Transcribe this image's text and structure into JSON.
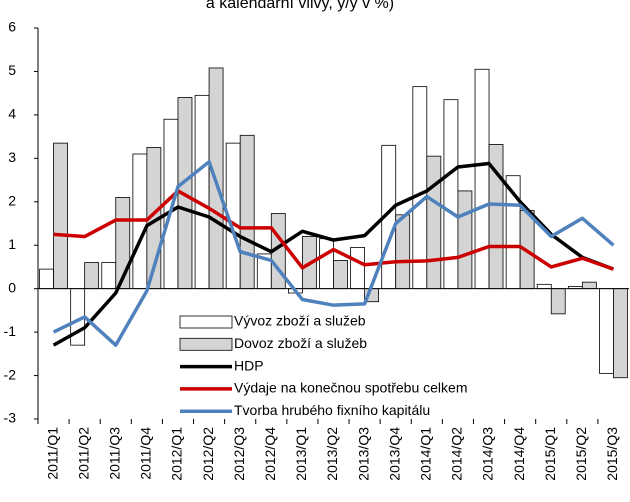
{
  "chart_data": {
    "type": "bar",
    "title": "a kalendářní vlivy, y/y v %)",
    "categories": [
      "2011/Q1",
      "2011/Q2",
      "2011/Q3",
      "2011/Q4",
      "2012/Q1",
      "2012/Q2",
      "2012/Q3",
      "2012/Q4",
      "2013/Q1",
      "2013/Q2",
      "2013/Q3",
      "2013/Q4",
      "2014/Q1",
      "2014/Q2",
      "2014/Q3",
      "2014/Q4",
      "2015/Q1",
      "2015/Q2",
      "2015/Q3"
    ],
    "series": [
      {
        "name": "Vývoz zboží a služeb",
        "type": "bar",
        "color": "#ffffff",
        "values": [
          0.45,
          -1.3,
          0.6,
          3.1,
          3.9,
          4.45,
          3.35,
          0.8,
          -0.1,
          1.15,
          0.95,
          3.3,
          4.65,
          4.35,
          5.05,
          2.6,
          0.1,
          0.05,
          -1.95
        ]
      },
      {
        "name": "Dovoz zboží a služeb",
        "type": "bar",
        "color": "#d4d4d4",
        "values": [
          3.35,
          0.6,
          2.1,
          3.25,
          4.4,
          5.08,
          3.53,
          1.73,
          1.2,
          0.65,
          -0.3,
          1.7,
          3.05,
          2.25,
          3.32,
          1.8,
          -0.58,
          0.15,
          -2.05
        ]
      },
      {
        "name": "HDP",
        "type": "line",
        "color": "#000000",
        "values": [
          -1.3,
          -0.9,
          -0.1,
          1.45,
          1.88,
          1.65,
          1.2,
          0.85,
          1.32,
          1.12,
          1.22,
          1.92,
          2.25,
          2.8,
          2.88,
          2.0,
          1.25,
          0.72,
          0.45
        ]
      },
      {
        "name": "Výdaje na konečnou spotřebu celkem",
        "type": "line",
        "color": "#cc0000",
        "values": [
          1.25,
          1.2,
          1.58,
          1.58,
          2.25,
          1.85,
          1.4,
          1.4,
          0.48,
          0.9,
          0.55,
          0.62,
          0.64,
          0.72,
          0.97,
          0.97,
          0.5,
          0.7,
          0.45
        ]
      },
      {
        "name": "Tvorba hrubého fixního kapitálu",
        "type": "line",
        "color": "#4f81bd",
        "values": [
          -1.0,
          -0.65,
          -1.3,
          -0.05,
          2.35,
          2.92,
          0.85,
          0.65,
          -0.25,
          -0.38,
          -0.35,
          1.5,
          2.12,
          1.65,
          1.95,
          1.92,
          1.2,
          1.62,
          1.0
        ]
      }
    ],
    "ylim": [
      -3,
      6
    ],
    "yticks": [
      -3,
      -2,
      -1,
      0,
      1,
      2,
      3,
      4,
      5,
      6
    ],
    "grid": false
  }
}
